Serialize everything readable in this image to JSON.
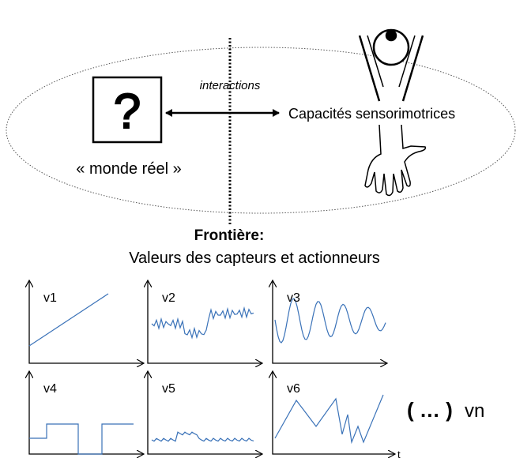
{
  "diagram": {
    "interactions": "interactions",
    "capacities": "Capacités sensorimotrices",
    "real_world": "« monde réel »",
    "question": "?",
    "frontier_title": "Frontière:",
    "frontier_text": "Valeurs des capteurs et actionneurs",
    "signals": [
      "v1",
      "v2",
      "v3",
      "v4",
      "v5",
      "v6"
    ],
    "ellipsis": "( … )",
    "last_signal": "vn",
    "time_axis": "t"
  }
}
